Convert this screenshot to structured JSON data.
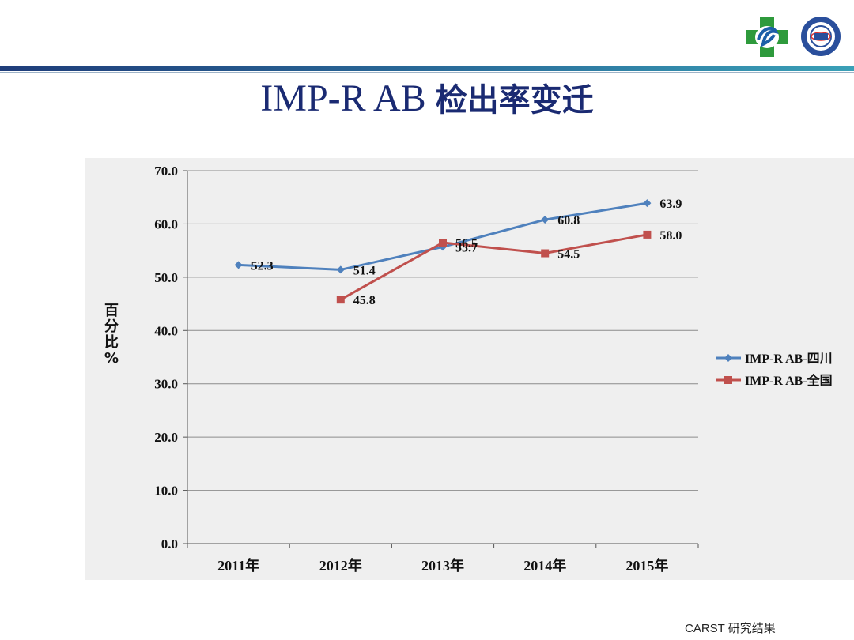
{
  "slide": {
    "title_latin": "IMP-R AB ",
    "title_cn": "检出率变迁",
    "ylabel": "百分比%",
    "footer": "CARST 研究结果"
  },
  "colors": {
    "sichuan": "#4f81bd",
    "national": "#c0504d",
    "title": "#1a2a72"
  },
  "icons": [
    "hospital-cross-logo-icon",
    "university-seal-logo-icon"
  ],
  "chart_data": {
    "type": "line",
    "categories": [
      "2011年",
      "2012年",
      "2013年",
      "2014年",
      "2015年"
    ],
    "series": [
      {
        "name": "IMP-R AB-四川",
        "marker": "diamond",
        "values": [
          52.3,
          51.4,
          55.7,
          60.8,
          63.9
        ]
      },
      {
        "name": "IMP-R AB-全国",
        "marker": "square",
        "values": [
          null,
          45.8,
          56.5,
          54.5,
          58.0
        ]
      }
    ],
    "ylim": [
      0,
      70
    ],
    "yticks": [
      "0.0",
      "10.0",
      "20.0",
      "30.0",
      "40.0",
      "50.0",
      "60.0",
      "70.0"
    ],
    "grid": true,
    "legend": "right",
    "title": "",
    "xlabel": "",
    "ylabel": "百分比%"
  }
}
